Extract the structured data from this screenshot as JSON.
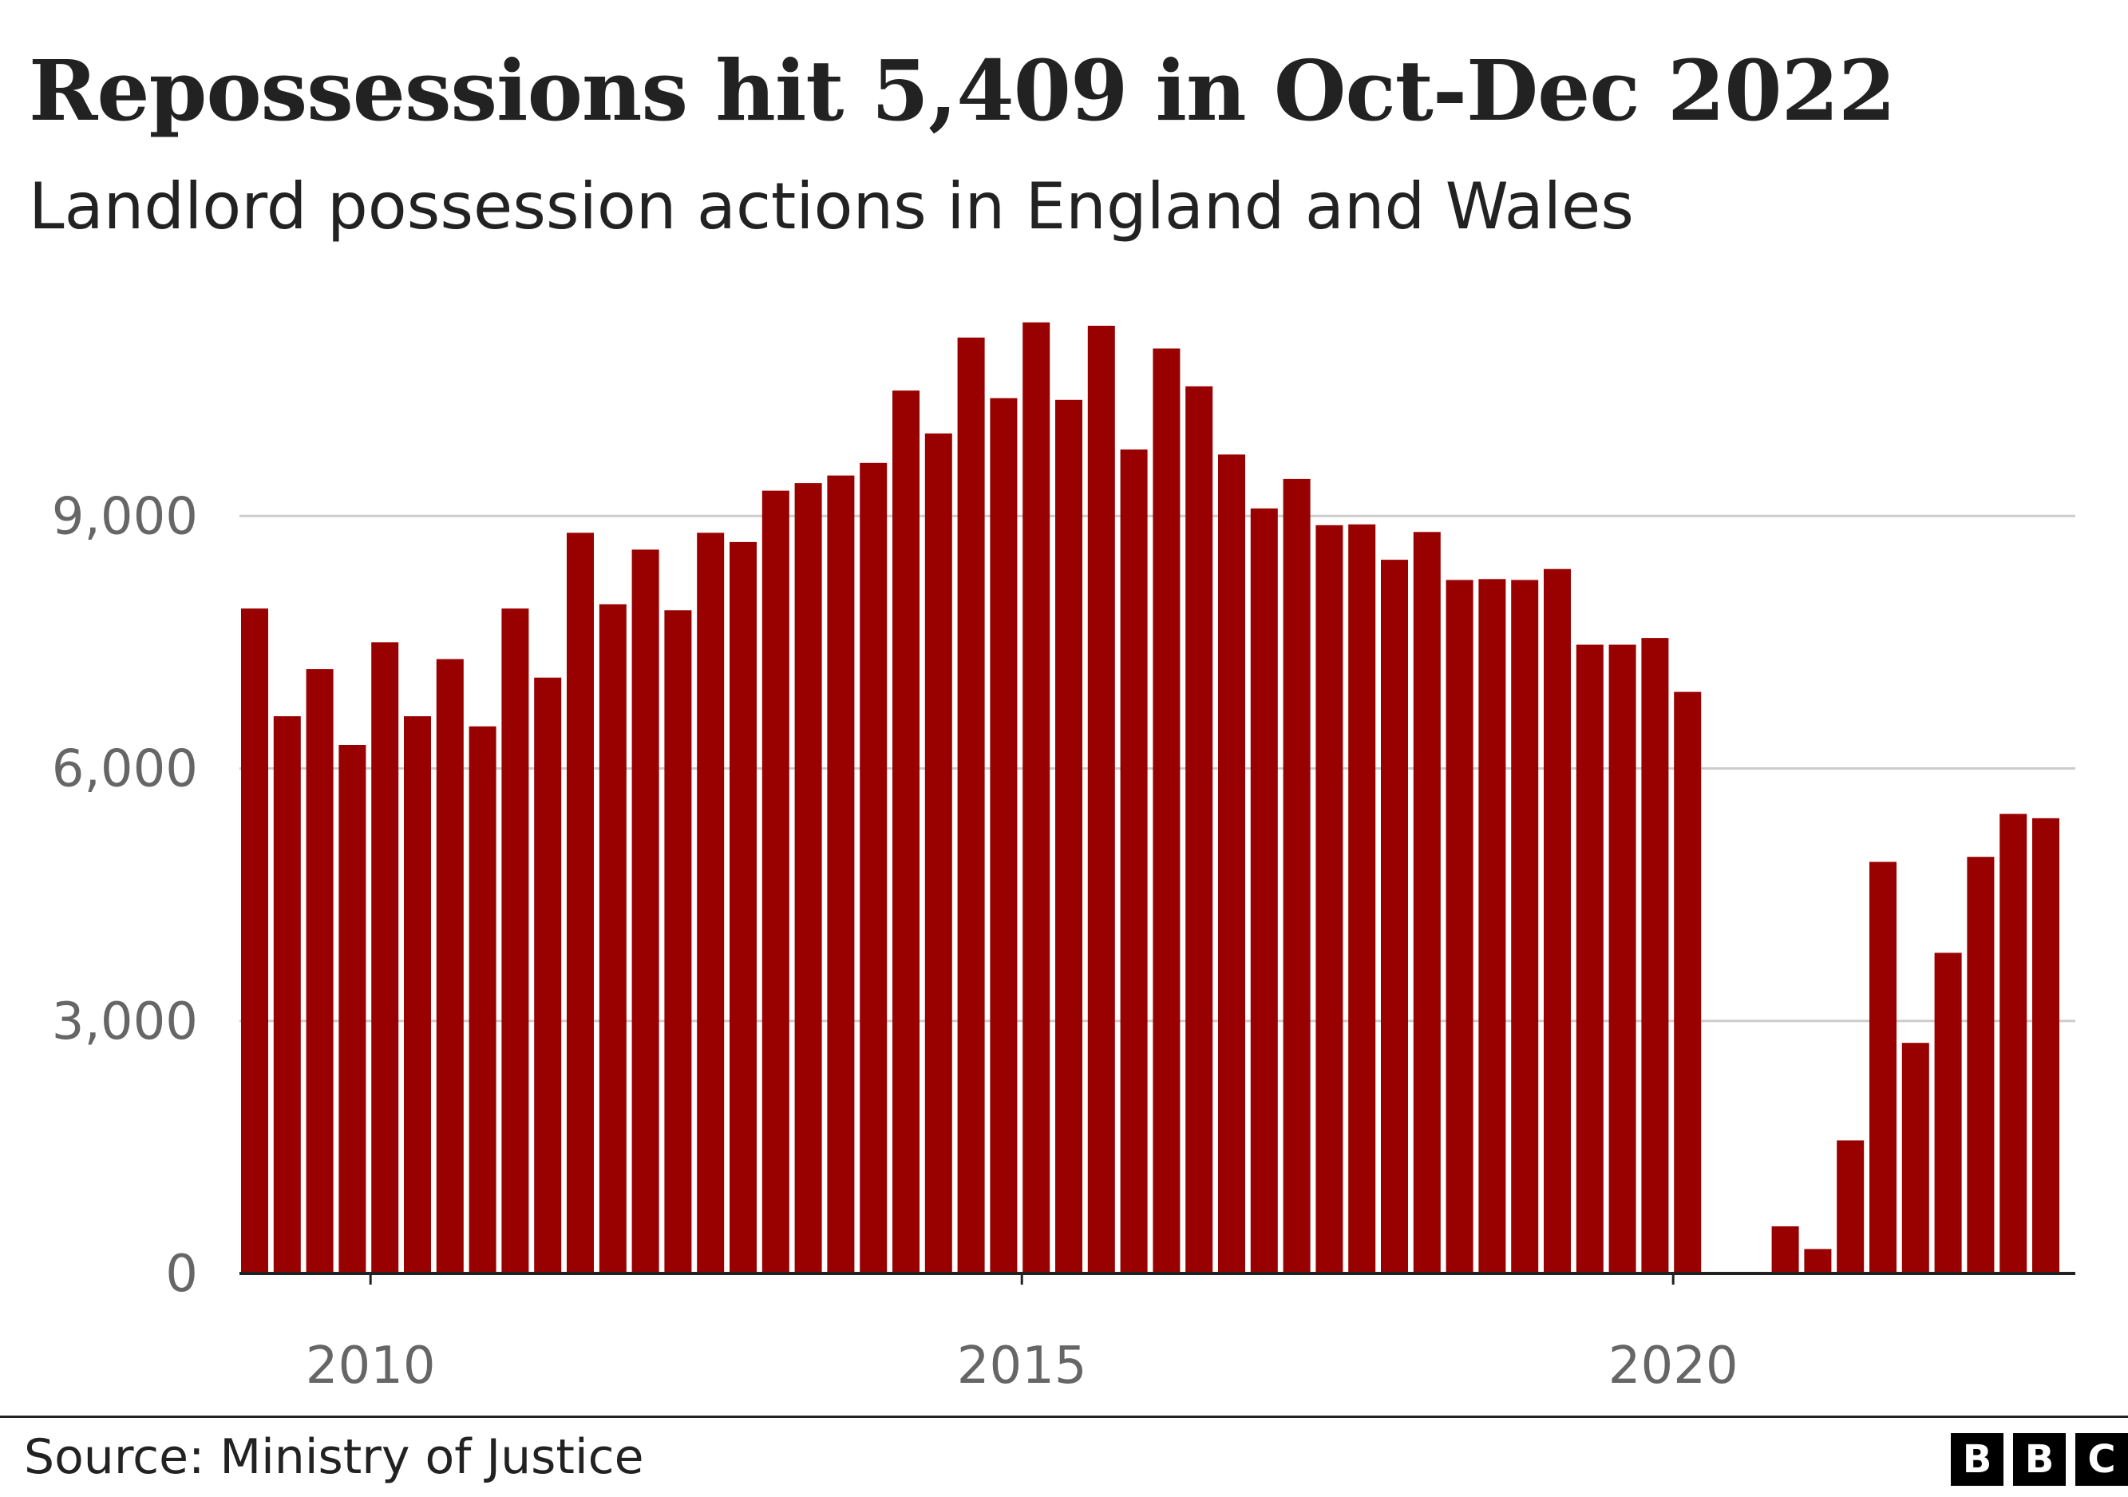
{
  "header": {
    "title": "Repossessions hit 5,409 in Oct-Dec 2022",
    "subtitle": "Landlord possession actions in England and Wales"
  },
  "footer": {
    "source": "Source: Ministry of Justice",
    "logo_letters": [
      "B",
      "B",
      "C"
    ]
  },
  "colors": {
    "bar": "#990000",
    "grid": "#cccccc",
    "axis": "#222222",
    "tick_label": "#666666"
  },
  "chart_data": {
    "type": "bar",
    "title": "Repossessions hit 5,409 in Oct-Dec 2022",
    "subtitle": "Landlord possession actions in England and Wales",
    "xlabel": "",
    "ylabel": "",
    "ylim": [
      0,
      12000
    ],
    "yticks": [
      0,
      3000,
      6000,
      9000
    ],
    "ytick_labels": [
      "0",
      "3,000",
      "6,000",
      "9,000"
    ],
    "xticks": [
      2010,
      2015,
      2020
    ],
    "xtick_labels": [
      "2010",
      "2015",
      "2020"
    ],
    "grid": true,
    "categories": [
      "2009 Q1",
      "2009 Q2",
      "2009 Q3",
      "2009 Q4",
      "2010 Q1",
      "2010 Q2",
      "2010 Q3",
      "2010 Q4",
      "2011 Q1",
      "2011 Q2",
      "2011 Q3",
      "2011 Q4",
      "2012 Q1",
      "2012 Q2",
      "2012 Q3",
      "2012 Q4",
      "2013 Q1",
      "2013 Q2",
      "2013 Q3",
      "2013 Q4",
      "2014 Q1",
      "2014 Q2",
      "2014 Q3",
      "2014 Q4",
      "2015 Q1",
      "2015 Q2",
      "2015 Q3",
      "2015 Q4",
      "2016 Q1",
      "2016 Q2",
      "2016 Q3",
      "2016 Q4",
      "2017 Q1",
      "2017 Q2",
      "2017 Q3",
      "2017 Q4",
      "2018 Q1",
      "2018 Q2",
      "2018 Q3",
      "2018 Q4",
      "2019 Q1",
      "2019 Q2",
      "2019 Q3",
      "2019 Q4",
      "2020 Q1",
      "2020 Q2",
      "2020 Q3",
      "2020 Q4",
      "2021 Q1",
      "2021 Q2",
      "2021 Q3",
      "2021 Q4",
      "2022 Q1",
      "2022 Q2",
      "2022 Q3",
      "2022 Q4"
    ],
    "values": [
      7900,
      6620,
      7180,
      6280,
      7500,
      6620,
      7300,
      6500,
      7900,
      7080,
      8800,
      7950,
      8600,
      7880,
      8800,
      8690,
      9300,
      9390,
      9480,
      9630,
      10490,
      9980,
      11120,
      10400,
      11300,
      10380,
      11260,
      9790,
      10990,
      10540,
      9730,
      9090,
      9440,
      8890,
      8900,
      8480,
      8810,
      8240,
      8250,
      8240,
      8370,
      7470,
      7470,
      7550,
      6910,
      0,
      0,
      560,
      290,
      1580,
      4890,
      2740,
      3810,
      4950,
      5460,
      5409
    ],
    "series": [
      {
        "name": "Landlord possession actions",
        "values_ref": "values"
      }
    ]
  }
}
